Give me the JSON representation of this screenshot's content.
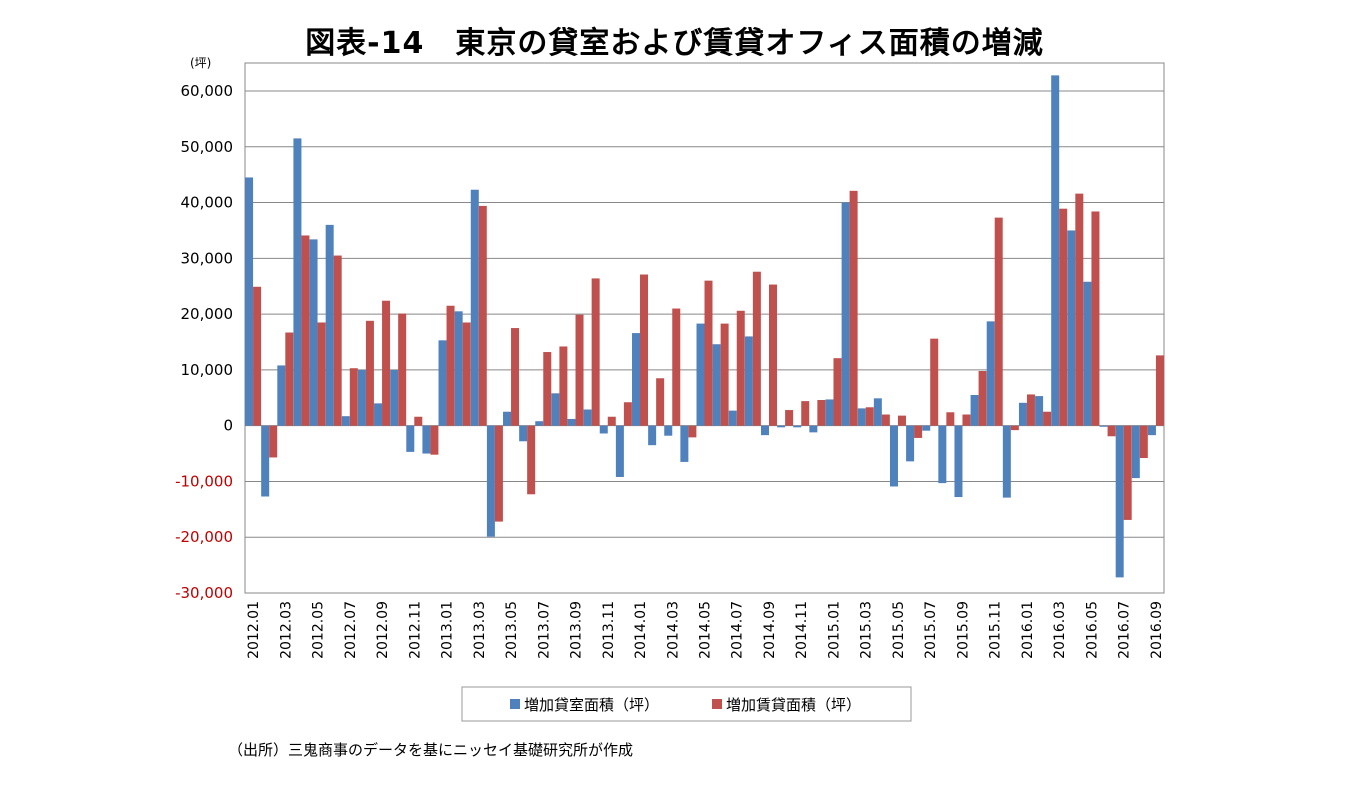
{
  "title": "図表-14　東京の貸室および賃貸オフィス面積の増減",
  "source": "（出所）三鬼商事のデータを基にニッセイ基礎研究所が作成",
  "chart_data": {
    "type": "bar",
    "unit_label": "(坪)",
    "ylim": [
      -30000,
      60000
    ],
    "yticks": [
      60000,
      50000,
      40000,
      30000,
      20000,
      10000,
      0,
      -10000,
      -20000,
      -30000
    ],
    "ytick_labels": [
      "60,000",
      "50,000",
      "40,000",
      "30,000",
      "20,000",
      "10,000",
      "0",
      "-10,000",
      "-20,000",
      "-30,000"
    ],
    "negative_label_color": "#c00000",
    "grid": true,
    "legend_position": "bottom",
    "categories": [
      "2012.01",
      "2012.02",
      "2012.03",
      "2012.04",
      "2012.05",
      "2012.06",
      "2012.07",
      "2012.08",
      "2012.09",
      "2012.10",
      "2012.11",
      "2012.12",
      "2013.01",
      "2013.02",
      "2013.03",
      "2013.04",
      "2013.05",
      "2013.06",
      "2013.07",
      "2013.08",
      "2013.09",
      "2013.10",
      "2013.11",
      "2013.12",
      "2014.01",
      "2014.02",
      "2014.03",
      "2014.04",
      "2014.05",
      "2014.06",
      "2014.07",
      "2014.08",
      "2014.09",
      "2014.10",
      "2014.11",
      "2014.12",
      "2015.01",
      "2015.02",
      "2015.03",
      "2015.04",
      "2015.05",
      "2015.06",
      "2015.07",
      "2015.08",
      "2015.09",
      "2015.10",
      "2015.11",
      "2015.12",
      "2016.01",
      "2016.02",
      "2016.03",
      "2016.04",
      "2016.05",
      "2016.06",
      "2016.07",
      "2016.08",
      "2016.09"
    ],
    "series": [
      {
        "name": "増加貸室面積（坪）",
        "color": "#4f81bd",
        "values": [
          44500,
          -12700,
          10800,
          51500,
          33400,
          36000,
          1700,
          10000,
          4000,
          10000,
          -4700,
          -5000,
          15300,
          20500,
          42300,
          -19900,
          2500,
          -2800,
          800,
          5800,
          1200,
          2900,
          -1400,
          -9200,
          16600,
          -3500,
          -1800,
          -6500,
          18300,
          14600,
          2700,
          16000,
          -1700,
          -300,
          -300,
          -1200,
          4700,
          40000,
          3100,
          4900,
          -10900,
          -6400,
          -900,
          -10300,
          -12800,
          5500,
          18700,
          -12900,
          4100,
          5300,
          62800,
          35000,
          25800,
          -200,
          -27200,
          -9400,
          -1700
        ]
      },
      {
        "name": "増加賃貸面積（坪）",
        "color": "#c0504d",
        "values": [
          24900,
          -5700,
          16700,
          34100,
          18500,
          30500,
          10300,
          18800,
          22400,
          20100,
          1600,
          -5200,
          21500,
          18500,
          39400,
          -17200,
          17500,
          -12300,
          13200,
          14200,
          19900,
          26400,
          1600,
          4200,
          27100,
          8500,
          21000,
          -2100,
          26000,
          18300,
          20600,
          27600,
          25300,
          2800,
          4400,
          4600,
          12100,
          42100,
          3300,
          2000,
          1800,
          -2200,
          15600,
          2400,
          2000,
          9800,
          37300,
          -800,
          5600,
          2500,
          38900,
          41600,
          38400,
          -1900,
          -16900,
          -5800,
          12600
        ]
      }
    ],
    "xtick_labels_shown": [
      "2012.01",
      "2012.03",
      "2012.05",
      "2012.07",
      "2012.09",
      "2012.11",
      "2013.01",
      "2013.03",
      "2013.05",
      "2013.07",
      "2013.09",
      "2013.11",
      "2014.01",
      "2014.03",
      "2014.05",
      "2014.07",
      "2014.09",
      "2014.11",
      "2015.01",
      "2015.03",
      "2015.05",
      "2015.07",
      "2015.09",
      "2015.11",
      "2016.01",
      "2016.03",
      "2016.05",
      "2016.07",
      "2016.09"
    ]
  }
}
